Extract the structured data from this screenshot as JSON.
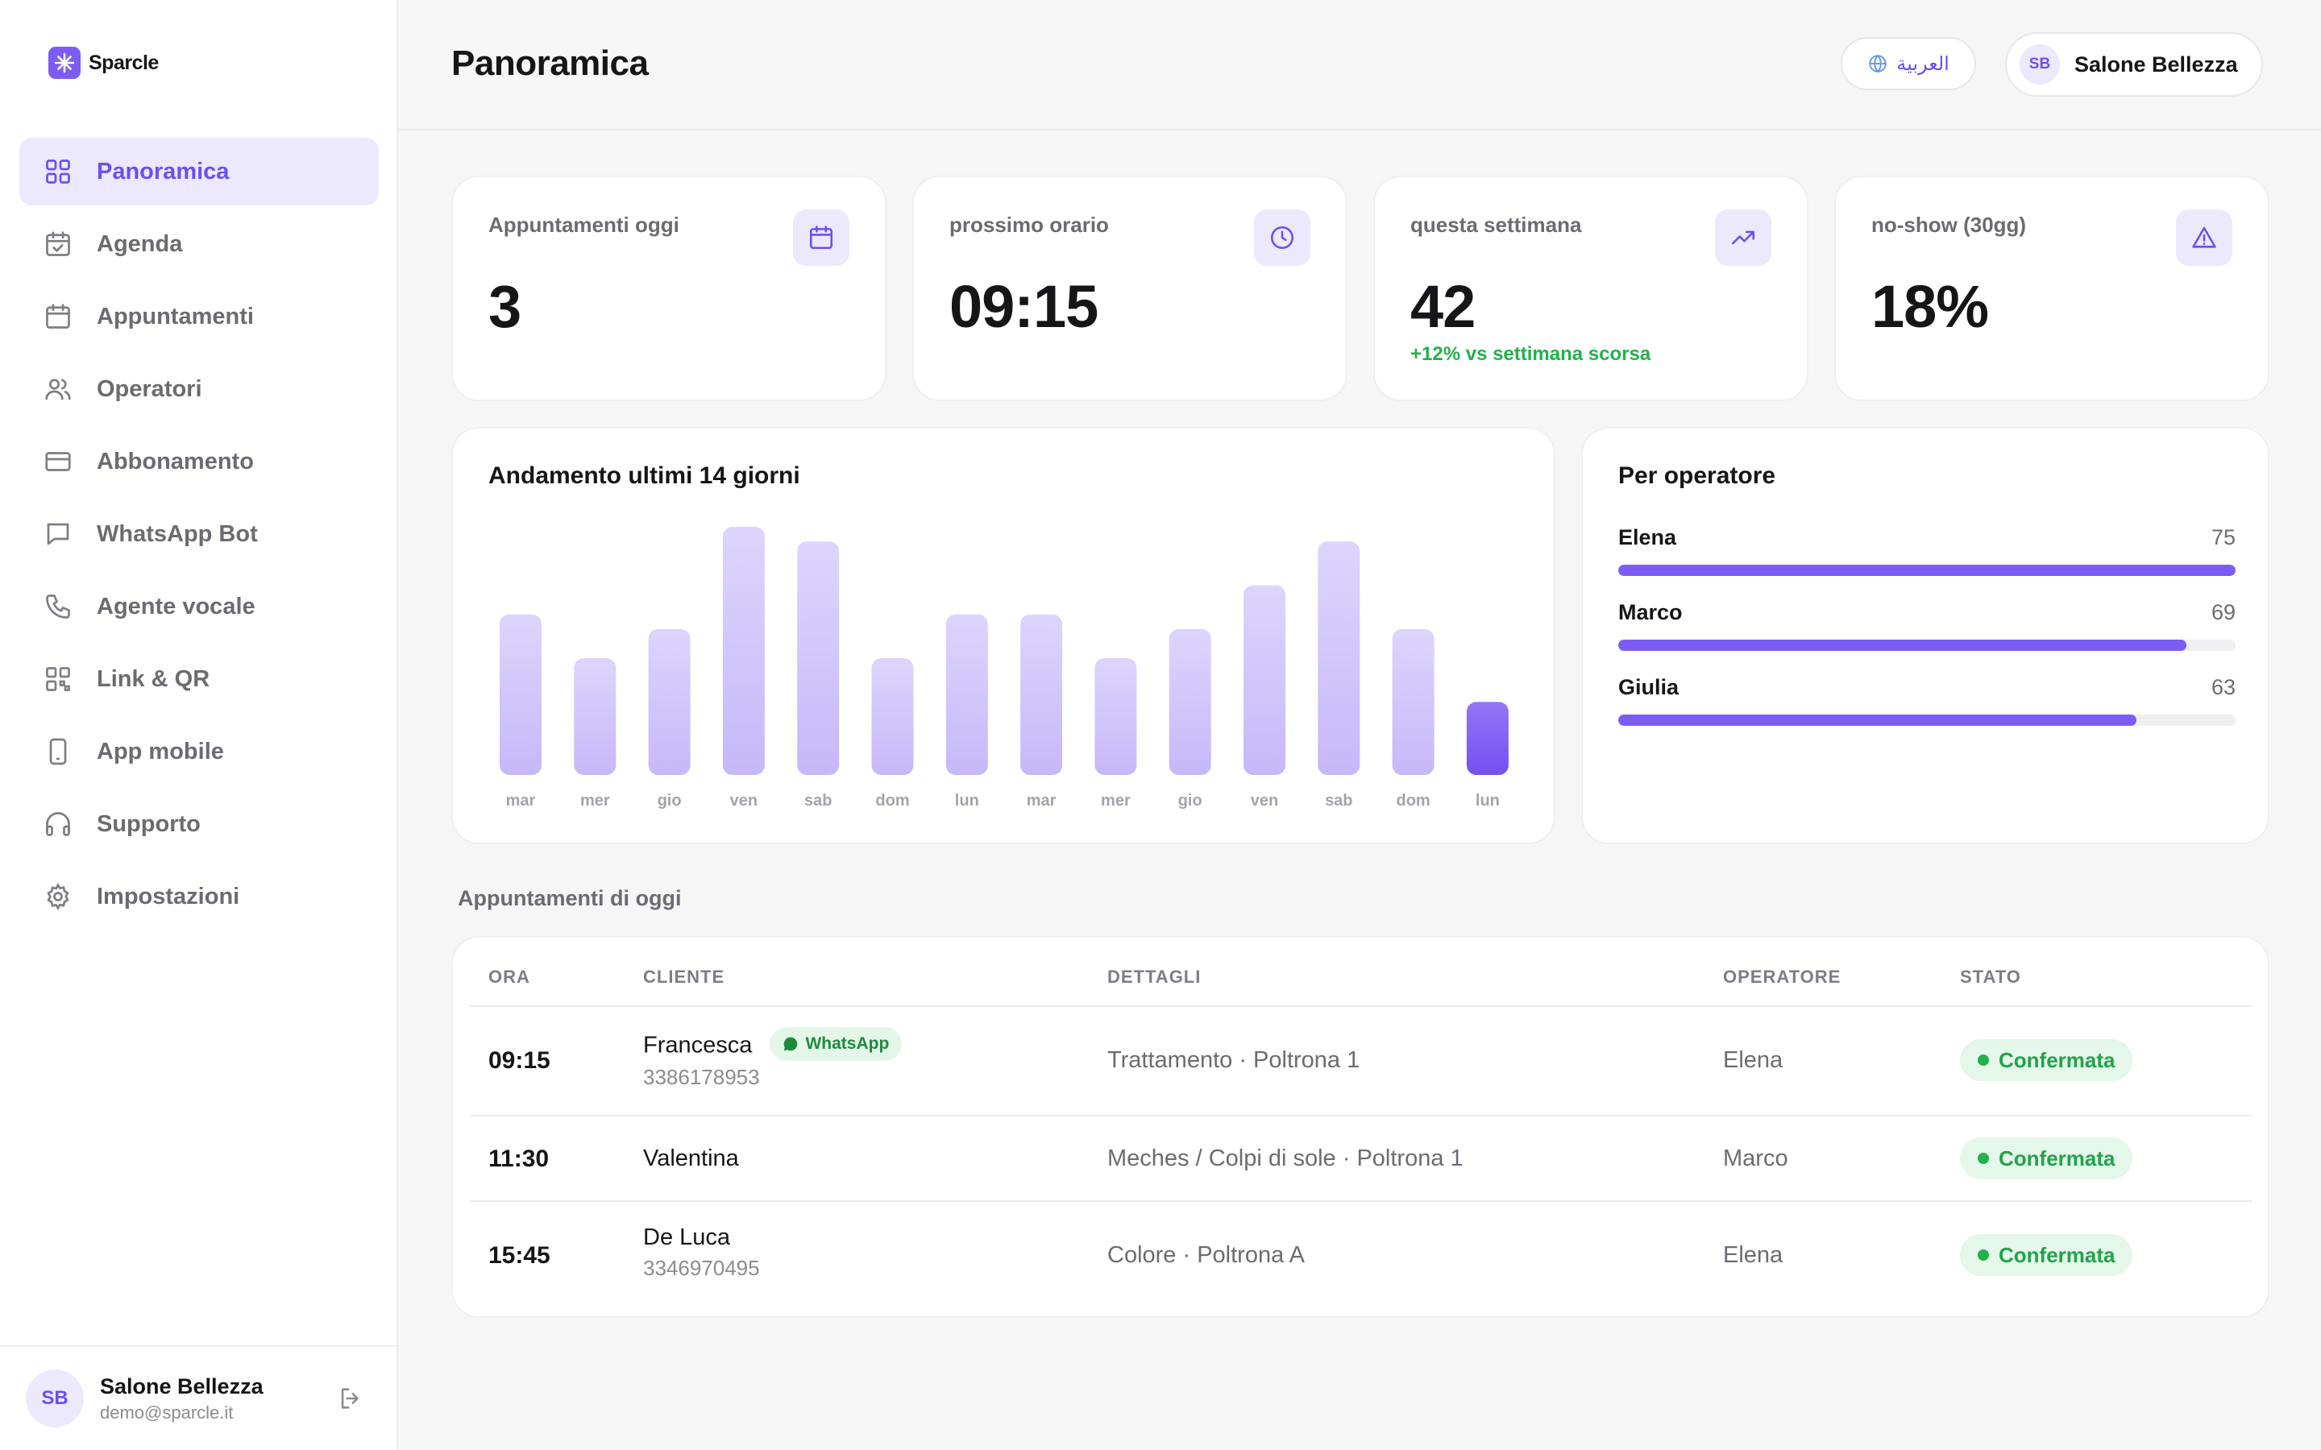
{
  "brand": {
    "name": "Sparcle",
    "accent": "#7c5cf5"
  },
  "sidebar": {
    "items": [
      {
        "label": "Panoramica",
        "icon": "grid-icon",
        "active": true
      },
      {
        "label": "Agenda",
        "icon": "calendar-check-icon"
      },
      {
        "label": "Appuntamenti",
        "icon": "calendar-icon"
      },
      {
        "label": "Operatori",
        "icon": "users-icon"
      },
      {
        "label": "Abbonamento",
        "icon": "credit-card-icon"
      },
      {
        "label": "WhatsApp Bot",
        "icon": "message-icon"
      },
      {
        "label": "Agente vocale",
        "icon": "phone-icon"
      },
      {
        "label": "Link & QR",
        "icon": "qr-icon"
      },
      {
        "label": "App mobile",
        "icon": "smartphone-icon"
      },
      {
        "label": "Supporto",
        "icon": "headphones-icon"
      },
      {
        "label": "Impostazioni",
        "icon": "gear-icon"
      }
    ],
    "footer": {
      "initials": "SB",
      "name": "Salone Bellezza",
      "email": "demo@sparcle.it"
    }
  },
  "header": {
    "title": "Panoramica",
    "language_label": "العربية",
    "user": {
      "initials": "SB",
      "name": "Salone Bellezza"
    }
  },
  "stats": [
    {
      "title": "Appuntamenti oggi",
      "value": "3",
      "icon": "calendar-icon"
    },
    {
      "title": "prossimo orario",
      "value": "09:15",
      "icon": "clock-icon"
    },
    {
      "title": "questa settimana",
      "value": "42",
      "delta": "+12% vs settimana scorsa",
      "icon": "trending-up-icon"
    },
    {
      "title": "no-show (30gg)",
      "value": "18%",
      "icon": "alert-triangle-icon"
    }
  ],
  "trend": {
    "title": "Andamento ultimi 14 giorni"
  },
  "chart_data": {
    "type": "bar",
    "categories": [
      "mar",
      "mer",
      "gio",
      "ven",
      "sab",
      "dom",
      "lun",
      "mar",
      "mer",
      "gio",
      "ven",
      "sab",
      "dom",
      "lun"
    ],
    "values": [
      11,
      8,
      10,
      17,
      16,
      8,
      11,
      11,
      8,
      10,
      13,
      16,
      10,
      5
    ],
    "highlight_index": 13,
    "ylim": [
      0,
      17
    ],
    "bar_color": "#d5ccfb",
    "highlight_color": "#7c5cf5"
  },
  "operators": {
    "title": "Per operatore",
    "max": 75,
    "items": [
      {
        "name": "Elena",
        "value": 75
      },
      {
        "name": "Marco",
        "value": 69
      },
      {
        "name": "Giulia",
        "value": 63
      }
    ]
  },
  "appointments": {
    "section_label": "Appuntamenti di oggi",
    "columns": {
      "time": "ORA",
      "client": "CLIENTE",
      "details": "DETTAGLI",
      "operator": "OPERATORE",
      "status": "STATO"
    },
    "rows": [
      {
        "time": "09:15",
        "client": "Francesca",
        "badge": "WhatsApp",
        "phone": "3386178953",
        "details": "Trattamento · Poltrona 1",
        "operator": "Elena",
        "status": "Confermata"
      },
      {
        "time": "11:30",
        "client": "Valentina",
        "details": "Meches / Colpi di sole · Poltrona 1",
        "operator": "Marco",
        "status": "Confermata"
      },
      {
        "time": "15:45",
        "client": "De Luca",
        "phone": "3346970495",
        "details": "Colore · Poltrona A",
        "operator": "Elena",
        "status": "Confermata"
      }
    ]
  }
}
